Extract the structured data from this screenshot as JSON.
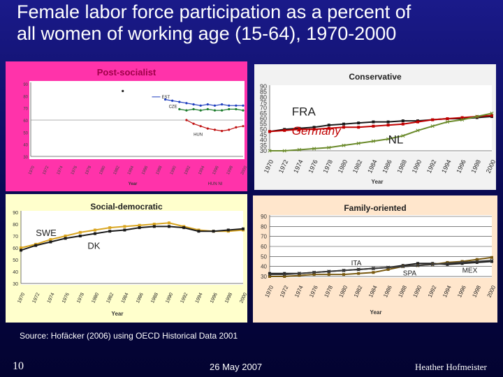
{
  "slide": {
    "title_line1": "Female labor force participation as a percent of",
    "title_line2": "all women of working age (15-64), 1970-2000",
    "source": "Source: Hofäcker (2006) using OECD Historical Data 2001",
    "page_number": "10",
    "date": "26 May 2007",
    "author": "Heather Hofmeister"
  },
  "chart_data": [
    {
      "id": "post-socialist",
      "type": "line",
      "title": "Post-socialist",
      "xlabel": "Year",
      "ylabel": "",
      "ylim": [
        30,
        90
      ],
      "yticks": [
        30,
        40,
        50,
        60,
        70,
        80,
        90
      ],
      "grid": false,
      "x_ticks": [
        1970,
        1972,
        1974,
        1976,
        1978,
        1980,
        1982,
        1984,
        1986,
        1988,
        1990,
        1992,
        1994,
        1996,
        1998,
        2000
      ],
      "legend_text": "HUN   NI",
      "colors": {
        "background": "#ff33aa",
        "plot": "#ffffff",
        "title": "#a0004a"
      },
      "series": [
        {
          "name": "EST",
          "color": "#1f3fbf",
          "x": [
            1989,
            1990,
            1991,
            1992,
            1993,
            1994,
            1995,
            1996,
            1997,
            1998,
            1999,
            2000
          ],
          "y": [
            77,
            76,
            75,
            74,
            73,
            72,
            73,
            72,
            73,
            72,
            72,
            72
          ]
        },
        {
          "name": "CZE",
          "color": "#1a7a2a",
          "x": [
            1991,
            1992,
            1993,
            1994,
            1995,
            1996,
            1997,
            1998,
            1999,
            2000
          ],
          "y": [
            69,
            68,
            69,
            68,
            69,
            68,
            68,
            69,
            69,
            68
          ]
        },
        {
          "name": "HUN",
          "color": "#c01010",
          "x": [
            1992,
            1993,
            1994,
            1995,
            1996,
            1997,
            1998,
            1999,
            2000
          ],
          "y": [
            60,
            57,
            55,
            53,
            52,
            51,
            52,
            54,
            55
          ]
        }
      ],
      "annotation_points": [
        {
          "x": 1983,
          "y": 84
        }
      ]
    },
    {
      "id": "conservative",
      "type": "line",
      "title": "Conservative",
      "xlabel": "Year",
      "ylabel": "",
      "ylim": [
        30,
        90
      ],
      "yticks": [
        30,
        35,
        40,
        45,
        50,
        55,
        60,
        65,
        70,
        75,
        80,
        85,
        90
      ],
      "grid": false,
      "x_ticks": [
        1970,
        1972,
        1974,
        1976,
        1978,
        1980,
        1982,
        1984,
        1986,
        1988,
        1990,
        1992,
        1994,
        1996,
        1998,
        2000
      ],
      "colors": {
        "background": "#f2f2f2",
        "plot": "#ffffff",
        "title": "#202020"
      },
      "series": [
        {
          "name": "FRA",
          "color": "#1a1a1a",
          "x": [
            1970,
            1972,
            1974,
            1976,
            1978,
            1980,
            1982,
            1984,
            1986,
            1988,
            1990,
            1992,
            1994,
            1996,
            1998,
            2000
          ],
          "y": [
            48,
            50,
            51,
            52,
            54,
            55,
            56,
            57,
            57,
            58,
            58,
            59,
            60,
            60,
            61,
            62
          ]
        },
        {
          "name": "Germany",
          "color": "#c00000",
          "x": [
            1970,
            1972,
            1974,
            1976,
            1978,
            1980,
            1982,
            1984,
            1986,
            1988,
            1990,
            1992,
            1994,
            1996,
            1998,
            2000
          ],
          "y": [
            48,
            49,
            50,
            50,
            51,
            52,
            52,
            53,
            54,
            55,
            57,
            59,
            60,
            61,
            62,
            63
          ]
        },
        {
          "name": "NL",
          "color": "#6a8a2a",
          "x": [
            1970,
            1972,
            1974,
            1976,
            1978,
            1980,
            1982,
            1984,
            1986,
            1988,
            1990,
            1992,
            1994,
            1996,
            1998,
            2000
          ],
          "y": [
            30,
            30,
            31,
            32,
            33,
            35,
            37,
            39,
            41,
            44,
            49,
            53,
            57,
            59,
            62,
            65
          ]
        }
      ]
    },
    {
      "id": "social-democratic",
      "type": "line",
      "title": "Social-democratic",
      "xlabel": "Year",
      "ylabel": "",
      "ylim": [
        30,
        90
      ],
      "yticks": [
        30,
        40,
        50,
        60,
        70,
        80,
        90
      ],
      "grid": false,
      "x_ticks": [
        1970,
        1972,
        1974,
        1976,
        1978,
        1980,
        1982,
        1984,
        1986,
        1988,
        1990,
        1992,
        1994,
        1996,
        1998,
        2000
      ],
      "colors": {
        "background": "#ffffcc",
        "plot": "#ffffff",
        "title": "#202020"
      },
      "series": [
        {
          "name": "SWE",
          "color": "#d9a520",
          "x": [
            1970,
            1972,
            1974,
            1976,
            1978,
            1980,
            1982,
            1984,
            1986,
            1988,
            1990,
            1992,
            1994,
            1996,
            1998,
            2000
          ],
          "y": [
            60,
            63,
            67,
            70,
            73,
            75,
            77,
            78,
            79,
            80,
            81,
            78,
            75,
            74,
            74,
            75
          ]
        },
        {
          "name": "DK",
          "color": "#1a1a1a",
          "x": [
            1970,
            1972,
            1974,
            1976,
            1978,
            1980,
            1982,
            1984,
            1986,
            1988,
            1990,
            1992,
            1994,
            1996,
            1998,
            2000
          ],
          "y": [
            58,
            62,
            65,
            68,
            70,
            72,
            74,
            75,
            77,
            78,
            78,
            77,
            74,
            74,
            75,
            76
          ]
        }
      ]
    },
    {
      "id": "family-oriented",
      "type": "line",
      "title": "Family-oriented",
      "xlabel": "Year",
      "ylabel": "",
      "ylim": [
        30,
        90
      ],
      "yticks": [
        30,
        40,
        50,
        60,
        70,
        80,
        90
      ],
      "grid": true,
      "x_ticks": [
        1970,
        1972,
        1974,
        1976,
        1978,
        1980,
        1982,
        1984,
        1986,
        1988,
        1990,
        1992,
        1994,
        1996,
        1998,
        2000
      ],
      "colors": {
        "background": "#ffe6cc",
        "plot": "#ffffff",
        "title": "#202020"
      },
      "series": [
        {
          "name": "ITA",
          "color": "#1a1a1a",
          "x": [
            1970,
            1972,
            1974,
            1976,
            1978,
            1980,
            1982,
            1984,
            1986,
            1988,
            1990,
            1992,
            1994,
            1996,
            1998,
            2000
          ],
          "y": [
            33,
            33,
            33,
            34,
            35,
            36,
            37,
            38,
            39,
            41,
            43,
            43,
            42,
            43,
            44,
            45
          ]
        },
        {
          "name": "SPA",
          "color": "#7a5a10",
          "x": [
            1970,
            1972,
            1974,
            1976,
            1978,
            1980,
            1982,
            1984,
            1986,
            1988,
            1990,
            1992,
            1994,
            1996,
            1998,
            2000
          ],
          "y": [
            30,
            30,
            31,
            32,
            32,
            32,
            33,
            34,
            37,
            40,
            41,
            42,
            44,
            45,
            47,
            49
          ]
        },
        {
          "name": "MEX",
          "color": "#3a3a3a",
          "x": [
            1970,
            1972,
            1974,
            1976,
            1978,
            1980,
            1982,
            1984,
            1986,
            1988,
            1990,
            1992,
            1994,
            1996,
            1998,
            2000
          ],
          "y": [
            32,
            32,
            33,
            34,
            35,
            36,
            37,
            38,
            39,
            40,
            41,
            42,
            43,
            44,
            45,
            46
          ]
        }
      ]
    }
  ]
}
